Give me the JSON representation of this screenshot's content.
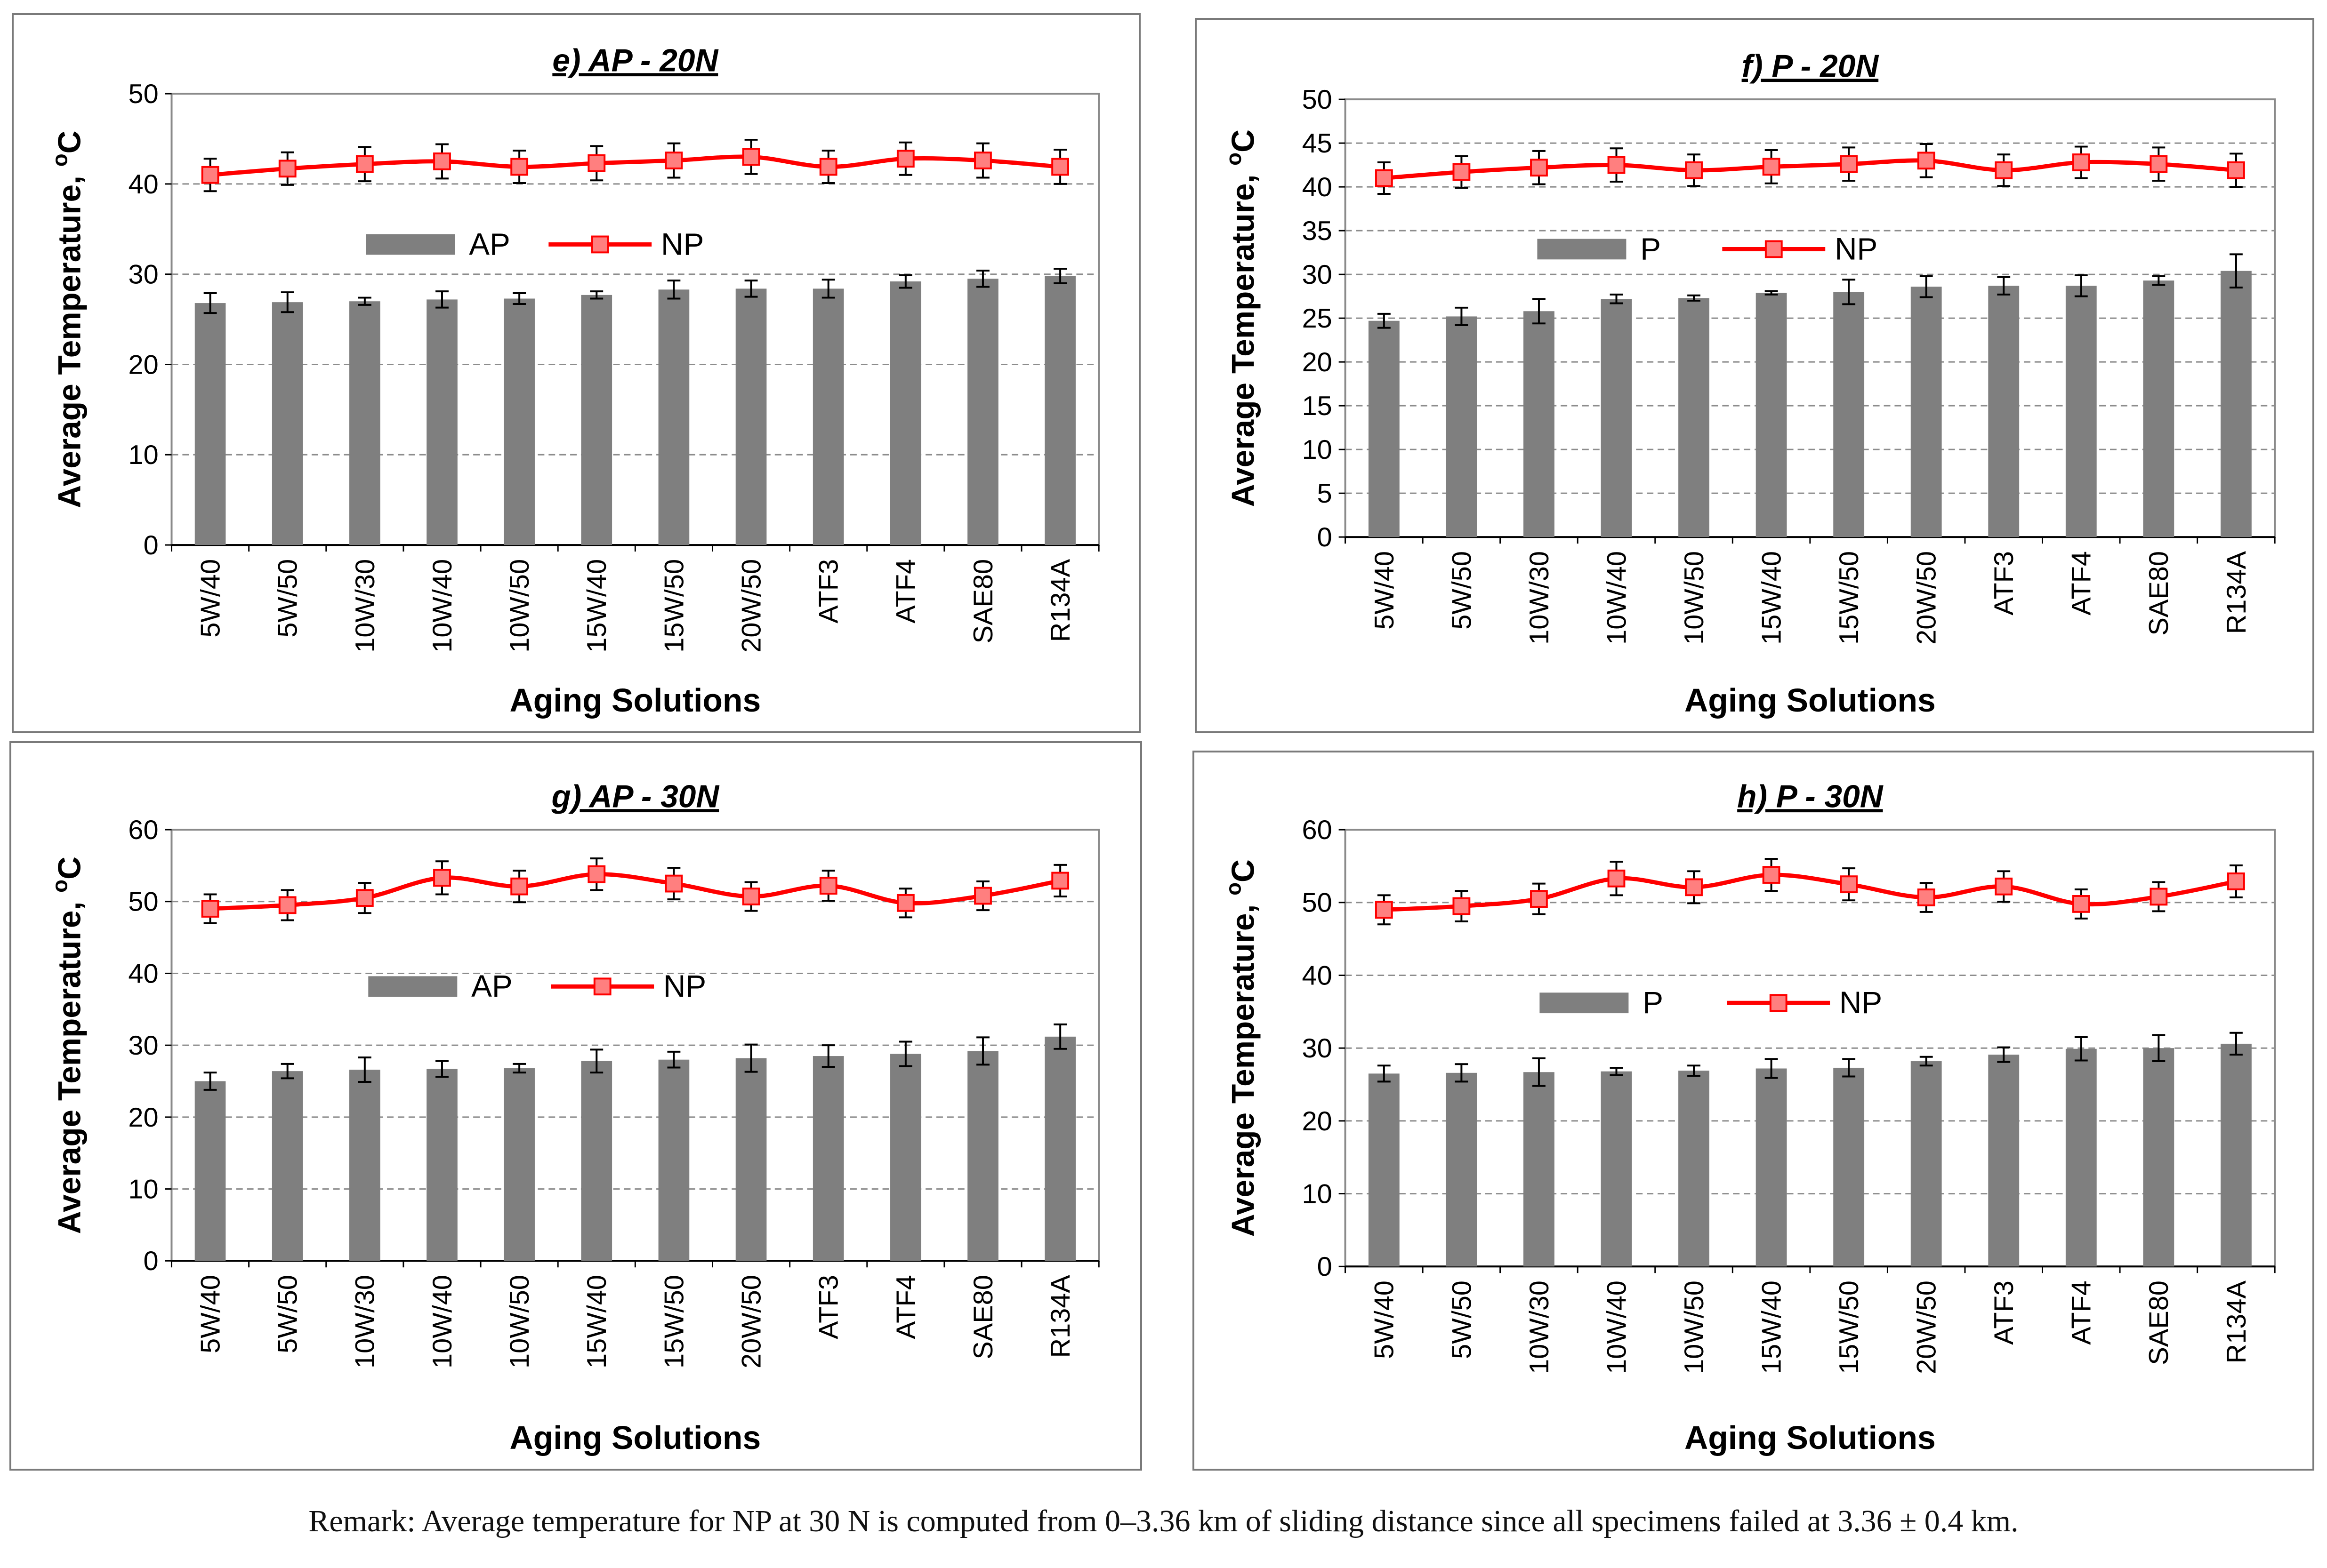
{
  "figure": {
    "remark": "Remark: Average temperature for NP at 30 N is computed from 0–3.36 km of sliding distance since all specimens failed at 3.36 ± 0.4 km."
  },
  "colors": {
    "bar": "#7f7f7f",
    "line": "#ff0000",
    "marker": "#ff7f7f",
    "grid": "#8c8c8c"
  },
  "chart_data": [
    {
      "id": "e",
      "type": "bar",
      "title": "e) AP - 20N",
      "xlabel": "Aging Solutions",
      "ylabel": "Average Temperature, ",
      "ylabel_sup": "o",
      "ylabel_unit": "C",
      "ylim": [
        0,
        50
      ],
      "yticks": [
        "0",
        "10",
        "20",
        "30",
        "40",
        "50"
      ],
      "grid": true,
      "legend": "center",
      "categories": [
        "5W/40",
        "5W/50",
        "10W/30",
        "10W/40",
        "10W/50",
        "15W/40",
        "15W/50",
        "20W/50",
        "ATF3",
        "ATF4",
        "SAE80",
        "R134A"
      ],
      "series": [
        {
          "name": "AP",
          "kind": "bar",
          "values": [
            26.8,
            26.9,
            27.0,
            27.2,
            27.3,
            27.7,
            28.3,
            28.4,
            28.4,
            29.2,
            29.5,
            29.8
          ],
          "errors": [
            1.1,
            1.1,
            0.4,
            0.9,
            0.6,
            0.4,
            1.0,
            0.9,
            1.0,
            0.7,
            0.9,
            0.8
          ]
        },
        {
          "name": "NP",
          "kind": "line",
          "values": [
            41.0,
            41.7,
            42.2,
            42.5,
            41.9,
            42.3,
            42.6,
            43.0,
            41.9,
            42.8,
            42.6,
            41.9
          ],
          "errors": [
            1.8,
            1.8,
            1.9,
            1.9,
            1.8,
            1.9,
            1.9,
            1.9,
            1.8,
            1.8,
            1.9,
            1.9
          ]
        }
      ]
    },
    {
      "id": "f",
      "type": "bar",
      "title": "f) P - 20N",
      "xlabel": "Aging Solutions",
      "ylabel": "Average Temperature, ",
      "ylabel_sup": "o",
      "ylabel_unit": "C",
      "ylim": [
        0,
        50
      ],
      "yticks": [
        "0",
        "5",
        "10",
        "15",
        "20",
        "25",
        "30",
        "35",
        "40",
        "45",
        "50"
      ],
      "grid": true,
      "legend": "center",
      "categories": [
        "5W/40",
        "5W/50",
        "10W/30",
        "10W/40",
        "10W/50",
        "15W/40",
        "15W/50",
        "20W/50",
        "ATF3",
        "ATF4",
        "SAE80",
        "R134A"
      ],
      "series": [
        {
          "name": "P",
          "kind": "bar",
          "values": [
            24.7,
            25.2,
            25.8,
            27.2,
            27.3,
            27.9,
            28.0,
            28.6,
            28.7,
            28.7,
            29.3,
            30.4
          ],
          "errors": [
            0.8,
            1.0,
            1.4,
            0.5,
            0.3,
            0.2,
            1.4,
            1.2,
            1.0,
            1.2,
            0.5,
            1.9
          ]
        },
        {
          "name": "NP",
          "kind": "line",
          "values": [
            41.0,
            41.7,
            42.2,
            42.5,
            41.9,
            42.3,
            42.6,
            43.0,
            41.9,
            42.8,
            42.6,
            41.9
          ],
          "errors": [
            1.8,
            1.8,
            1.9,
            1.9,
            1.8,
            1.9,
            1.9,
            1.9,
            1.8,
            1.8,
            1.9,
            1.9
          ]
        }
      ]
    },
    {
      "id": "g",
      "type": "bar",
      "title": "g) AP - 30N",
      "xlabel": "Aging Solutions",
      "ylabel": "Average Temperature, ",
      "ylabel_sup": "o",
      "ylabel_unit": "C",
      "ylim": [
        0,
        60
      ],
      "yticks": [
        "0",
        "10",
        "20",
        "30",
        "40",
        "50",
        "60"
      ],
      "grid": true,
      "legend": "center",
      "categories": [
        "5W/40",
        "5W/50",
        "10W/30",
        "10W/40",
        "10W/50",
        "15W/40",
        "15W/50",
        "20W/50",
        "ATF3",
        "ATF4",
        "SAE80",
        "R134A"
      ],
      "series": [
        {
          "name": "AP",
          "kind": "bar",
          "values": [
            25.0,
            26.4,
            26.6,
            26.7,
            26.8,
            27.8,
            28.0,
            28.2,
            28.5,
            28.8,
            29.2,
            31.2
          ],
          "errors": [
            1.2,
            1.0,
            1.7,
            1.1,
            0.6,
            1.6,
            1.1,
            1.9,
            1.5,
            1.7,
            1.9,
            1.7
          ]
        },
        {
          "name": "NP",
          "kind": "line",
          "values": [
            49.0,
            49.5,
            50.5,
            53.3,
            52.1,
            53.8,
            52.5,
            50.7,
            52.2,
            49.8,
            50.8,
            52.9
          ],
          "errors": [
            2.0,
            2.1,
            2.1,
            2.3,
            2.2,
            2.2,
            2.2,
            2.0,
            2.1,
            2.0,
            2.0,
            2.2
          ]
        }
      ]
    },
    {
      "id": "h",
      "type": "bar",
      "title": "h) P - 30N",
      "xlabel": "Aging Solutions",
      "ylabel": "Average Temperature, ",
      "ylabel_sup": "o",
      "ylabel_unit": "C",
      "ylim": [
        0,
        60
      ],
      "yticks": [
        "0",
        "10",
        "20",
        "30",
        "40",
        "50",
        "60"
      ],
      "grid": true,
      "legend": "center",
      "categories": [
        "5W/40",
        "5W/50",
        "10W/30",
        "10W/40",
        "10W/50",
        "15W/40",
        "15W/50",
        "20W/50",
        "ATF3",
        "ATF4",
        "SAE80",
        "R134A"
      ],
      "series": [
        {
          "name": "P",
          "kind": "bar",
          "values": [
            26.5,
            26.6,
            26.7,
            26.8,
            26.9,
            27.2,
            27.3,
            28.2,
            29.1,
            29.9,
            30.0,
            30.6
          ],
          "errors": [
            1.1,
            1.2,
            1.9,
            0.5,
            0.7,
            1.3,
            1.2,
            0.6,
            1.0,
            1.6,
            1.8,
            1.5
          ]
        },
        {
          "name": "NP",
          "kind": "line",
          "values": [
            49.0,
            49.5,
            50.5,
            53.3,
            52.1,
            53.8,
            52.5,
            50.7,
            52.2,
            49.8,
            50.8,
            52.9
          ],
          "errors": [
            2.0,
            2.1,
            2.1,
            2.3,
            2.2,
            2.2,
            2.2,
            2.0,
            2.1,
            2.0,
            2.0,
            2.2
          ]
        }
      ]
    }
  ]
}
